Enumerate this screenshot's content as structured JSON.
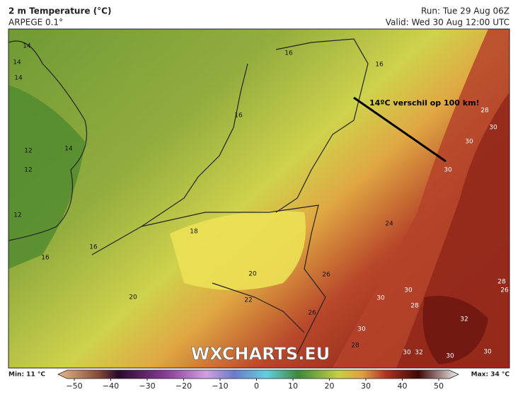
{
  "header": {
    "title": "2 m Temperature (°C)",
    "model": "ARPEGE 0.1°",
    "run": "Run: Tue 29 Aug 06Z",
    "valid": "Valid: Wed 30 Aug 12:00 UTC"
  },
  "map": {
    "annotation": "14ºC verschil op 100 km!",
    "watermark": "WXCHARTS.EU",
    "contour_labels": [
      "14",
      "14",
      "14",
      "16",
      "16",
      "28",
      "30",
      "30",
      "16",
      "12",
      "14",
      "12",
      "30",
      "12",
      "18",
      "24",
      "16",
      "16",
      "20",
      "26",
      "28",
      "26",
      "30",
      "30",
      "20",
      "22",
      "28",
      "26",
      "32",
      "30",
      "28",
      "30",
      "32",
      "30",
      "30"
    ]
  },
  "colorbar": {
    "min": "Min: 11 °C",
    "max": "Max: 34 °C",
    "ticks": [
      "−50",
      "−40",
      "−30",
      "−20",
      "−10",
      "0",
      "10",
      "20",
      "30",
      "40",
      "50"
    ]
  }
}
